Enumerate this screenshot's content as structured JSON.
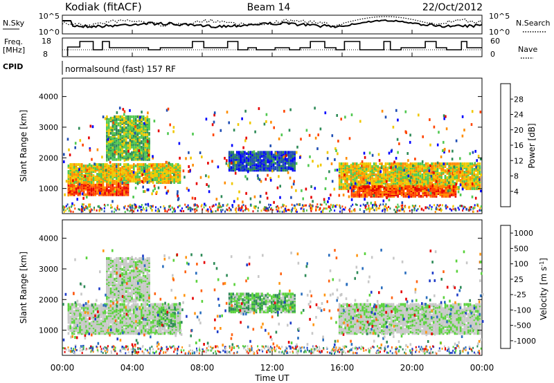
{
  "header": {
    "station": "Kodiak (fitACF)",
    "beam": "Beam 14",
    "date": "22/Oct/2012"
  },
  "top_panels": {
    "nsky": {
      "label": "N.Sky",
      "ticks": [
        "10^5",
        "10^0"
      ],
      "right_label": "N.Search",
      "right_ticks": [
        "10^5",
        "10^0"
      ]
    },
    "freq": {
      "label_line1": "Freq.",
      "label_line2": "[MHz]",
      "ticks": [
        "18",
        "8"
      ],
      "right_label": "Nave",
      "right_ticks": [
        "60",
        "0"
      ]
    },
    "cpid": {
      "label": "CPID",
      "text": "normalsound (fast) 157 RF"
    }
  },
  "chart_data": [
    {
      "type": "heatmap",
      "name": "power",
      "ylabel": "Slant Range [km]",
      "yticks": [
        1000,
        2000,
        3000,
        4000
      ],
      "ylim": [
        180,
        4600
      ],
      "colorbar_label": "Power [dB]",
      "colorbar_ticks": [
        "4",
        "8",
        "12",
        "16",
        "20",
        "24",
        "28"
      ],
      "colors": [
        "#0000ff",
        "#1e4db4",
        "#2e8b57",
        "#50c850",
        "#f0c800",
        "#ff8c00",
        "#ff4400",
        "#e60000"
      ],
      "regions": [
        {
          "t": [
            0.3,
            3.8
          ],
          "r": [
            750,
            1150
          ],
          "level": 6
        },
        {
          "t": [
            0.3,
            6.7
          ],
          "r": [
            1150,
            1750
          ],
          "level": 4
        },
        {
          "t": [
            2.5,
            5.0
          ],
          "r": [
            1900,
            3300
          ],
          "level": 3
        },
        {
          "t": [
            9.5,
            13.3
          ],
          "r": [
            1550,
            2150
          ],
          "level": 1
        },
        {
          "t": [
            15.8,
            23.9
          ],
          "r": [
            950,
            1800
          ],
          "level": 4
        },
        {
          "t": [
            16.5,
            22.5
          ],
          "r": [
            700,
            1050
          ],
          "level": 6
        }
      ]
    },
    {
      "type": "heatmap",
      "name": "velocity",
      "ylabel": "Slant Range [km]",
      "yticks": [
        1000,
        2000,
        3000,
        4000
      ],
      "ylim": [
        180,
        4600
      ],
      "colorbar_label": "Velocity [m s^-1]",
      "colorbar_ticks": [
        "1000",
        "500",
        "100",
        "25",
        "-25",
        "-100",
        "-500",
        "-1000"
      ],
      "colors": [
        "#1e3cc8",
        "#2a6ebe",
        "#2e8b57",
        "#5ad23c",
        "#c8c8c8",
        "#c8c8c8",
        "#ff9614",
        "#ff6414",
        "#e60000"
      ],
      "regions": [
        {
          "t": [
            0.3,
            6.7
          ],
          "r": [
            850,
            1800
          ],
          "level": 4
        },
        {
          "t": [
            2.5,
            5.0
          ],
          "r": [
            1900,
            3300
          ],
          "level": 4
        },
        {
          "t": [
            5.4,
            6.4
          ],
          "r": [
            1100,
            1700
          ],
          "level": 3
        },
        {
          "t": [
            9.5,
            13.3
          ],
          "r": [
            1550,
            2150
          ],
          "level": 3
        },
        {
          "t": [
            15.8,
            23.9
          ],
          "r": [
            850,
            1800
          ],
          "level": 4
        }
      ]
    }
  ],
  "xaxis": {
    "label": "Time UT",
    "ticks": [
      "00:00",
      "04:00",
      "08:00",
      "12:00",
      "16:00",
      "20:00",
      "00:00"
    ]
  }
}
